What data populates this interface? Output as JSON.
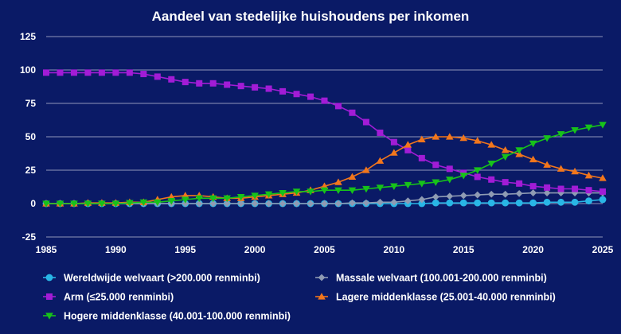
{
  "chart_data": {
    "type": "line",
    "title": "Aandeel van stedelijke huishoudens per inkomen",
    "xlabel": "",
    "ylabel": "",
    "xlim": [
      1985,
      2025
    ],
    "ylim": [
      -25,
      125
    ],
    "y_ticks": [
      -25,
      0,
      25,
      50,
      75,
      100,
      125
    ],
    "x_ticks": [
      1985,
      1990,
      1995,
      2000,
      2005,
      2010,
      2015,
      2020,
      2025
    ],
    "x": [
      1985,
      1986,
      1987,
      1988,
      1989,
      1990,
      1991,
      1992,
      1993,
      1994,
      1995,
      1996,
      1997,
      1998,
      1999,
      2000,
      2001,
      2002,
      2003,
      2004,
      2005,
      2006,
      2007,
      2008,
      2009,
      2010,
      2011,
      2012,
      2013,
      2014,
      2015,
      2016,
      2017,
      2018,
      2019,
      2020,
      2021,
      2022,
      2023,
      2024,
      2025
    ],
    "series": [
      {
        "name": "Wereldwijde welvaart (>200.000 renminbi)",
        "color": "#29b6e6",
        "marker": "circle",
        "values": [
          0,
          0,
          0,
          0,
          0,
          0,
          0,
          0,
          0,
          0,
          0,
          0,
          0,
          0,
          0,
          0,
          0,
          0,
          0,
          0,
          0,
          0,
          0,
          0,
          0,
          0,
          0,
          0,
          0.5,
          0.5,
          0.5,
          0.5,
          0.5,
          0.5,
          0.5,
          0.5,
          1,
          1,
          1,
          2,
          3
        ]
      },
      {
        "name": "Massale welvaart (100.001-200.000 renminbi)",
        "color": "#8f9bb3",
        "marker": "diamond",
        "values": [
          0,
          0,
          0,
          0,
          0,
          0,
          0,
          0,
          0,
          0,
          0,
          0,
          0,
          0,
          0,
          0,
          0,
          0,
          0,
          0,
          0,
          0,
          0.5,
          0.5,
          1,
          1,
          2,
          3,
          5,
          5.5,
          6,
          6.5,
          7,
          7,
          7.5,
          8,
          8,
          8,
          8,
          8,
          8
        ]
      },
      {
        "name": "Arm (≤25.000 renminbi)",
        "color": "#a21cd6",
        "marker": "square",
        "values": [
          98,
          98,
          98,
          98,
          98,
          98,
          98,
          97,
          95,
          93,
          91,
          90,
          90,
          89,
          88,
          87,
          86,
          84,
          82,
          80,
          77,
          73,
          68,
          61,
          53,
          46,
          40,
          34,
          29,
          26,
          23,
          20,
          18,
          16,
          15,
          13,
          12,
          11,
          11,
          10,
          9
        ]
      },
      {
        "name": "Lagere middenklasse (25.001-40.000 renminbi)",
        "color": "#f2761c",
        "marker": "triangle-up",
        "values": [
          0,
          0,
          0,
          0.5,
          0.5,
          0.5,
          1,
          1,
          3,
          5,
          6,
          6,
          5,
          4,
          4,
          5,
          6,
          7,
          8,
          10,
          13,
          16,
          20,
          25,
          32,
          38,
          44,
          48,
          50,
          50,
          49,
          47,
          44,
          40,
          37,
          33,
          29,
          26,
          24,
          21,
          19
        ]
      },
      {
        "name": "Hogere middenklasse (40.001-100.000 renminbi)",
        "color": "#17c21a",
        "marker": "triangle-down",
        "values": [
          0,
          0,
          0,
          0,
          0,
          0,
          0.5,
          1,
          1,
          2,
          3,
          4,
          4,
          4,
          5,
          6,
          7,
          8,
          9,
          9,
          10,
          10,
          10,
          11,
          12,
          13,
          14,
          15,
          16,
          18,
          21,
          25,
          30,
          35,
          40,
          45,
          49,
          52,
          55,
          57,
          59
        ]
      }
    ]
  }
}
